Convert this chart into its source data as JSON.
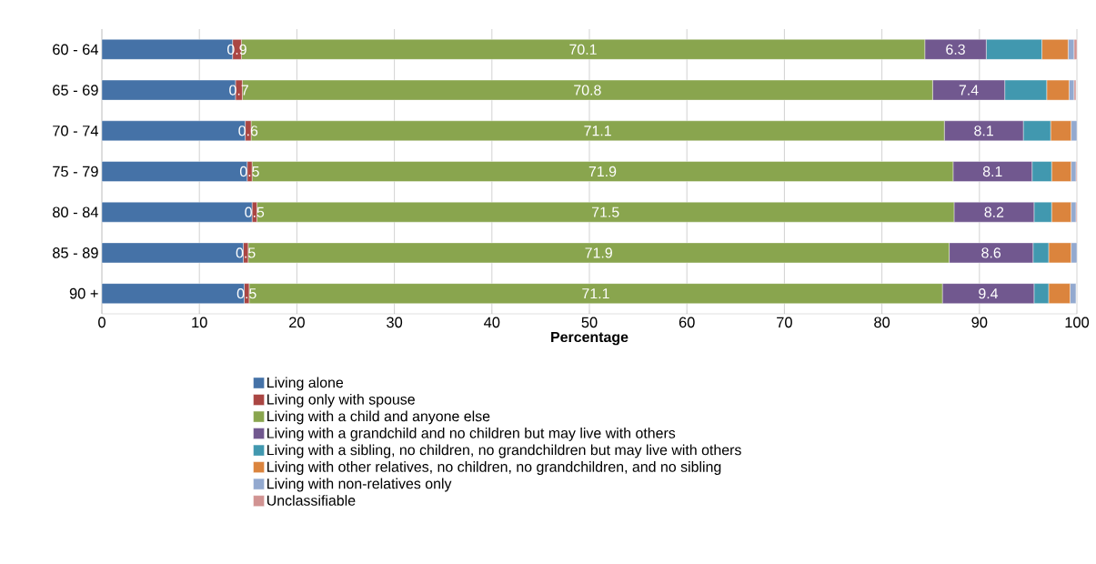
{
  "chart_data": {
    "type": "bar",
    "orientation": "horizontal",
    "stacked": true,
    "xlabel": "Percentage",
    "categories": [
      "60 - 64",
      "65 - 69",
      "70 - 74",
      "75 - 79",
      "80 - 84",
      "85 - 89",
      "90 +"
    ],
    "xlim": [
      0,
      100
    ],
    "xticks": [
      0,
      10,
      20,
      30,
      40,
      50,
      60,
      70,
      80,
      90,
      100
    ],
    "grid": "x",
    "legend": "bottom",
    "series": [
      {
        "name": "Living alone",
        "color": "#4572a7",
        "values": [
          13.4,
          13.7,
          14.7,
          14.9,
          15.4,
          14.5,
          14.6
        ]
      },
      {
        "name": "Living only with spouse",
        "color": "#aa4643",
        "values": [
          0.9,
          0.7,
          0.6,
          0.5,
          0.5,
          0.5,
          0.5
        ],
        "value_labels": [
          "0.9",
          "0.7",
          "0.6",
          "0.5",
          "0.5",
          "0.5",
          "0.5"
        ]
      },
      {
        "name": "Living with a child and anyone else",
        "color": "#89a54e",
        "values": [
          70.1,
          70.8,
          71.1,
          71.9,
          71.5,
          71.9,
          71.1
        ],
        "value_labels": [
          "70.1",
          "70.8",
          "71.1",
          "71.9",
          "71.5",
          "71.9",
          "71.1"
        ]
      },
      {
        "name": "Living with a grandchild and no children but may live with others",
        "color": "#71588f",
        "values": [
          6.3,
          7.4,
          8.1,
          8.1,
          8.2,
          8.6,
          9.4
        ],
        "value_labels": [
          "6.3",
          "7.4",
          "8.1",
          "8.1",
          "8.2",
          "8.6",
          "9.4"
        ]
      },
      {
        "name": "Living with a sibling, no children, no grandchildren but may live with others",
        "color": "#4198af",
        "values": [
          5.7,
          4.3,
          2.8,
          2.0,
          1.8,
          1.6,
          1.5
        ]
      },
      {
        "name": "Living with other relatives, no children, no grandchildren, and no sibling",
        "color": "#db843d",
        "values": [
          2.7,
          2.3,
          2.1,
          2.0,
          2.0,
          2.3,
          2.2
        ]
      },
      {
        "name": "Living with non-relatives only",
        "color": "#93a9cf",
        "values": [
          0.6,
          0.5,
          0.6,
          0.5,
          0.5,
          0.6,
          0.6
        ]
      },
      {
        "name": "Unclassifiable",
        "color": "#d19392",
        "values": [
          0.3,
          0.2,
          0.0,
          0.1,
          0.1,
          0.0,
          0.0
        ]
      }
    ]
  }
}
